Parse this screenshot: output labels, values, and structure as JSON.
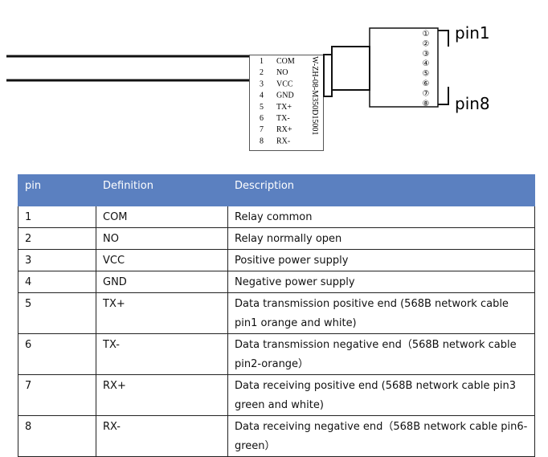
{
  "diagram": {
    "pins": [
      {
        "num": "1",
        "name": "COM"
      },
      {
        "num": "2",
        "name": "NO"
      },
      {
        "num": "3",
        "name": "VCC"
      },
      {
        "num": "4",
        "name": "GND"
      },
      {
        "num": "5",
        "name": "TX+"
      },
      {
        "num": "6",
        "name": "TX-"
      },
      {
        "num": "7",
        "name": "RX+"
      },
      {
        "num": "8",
        "name": "RX-"
      }
    ],
    "part_number": "W-ZH-08-M350D15001",
    "terminals": [
      "①",
      "②",
      "③",
      "④",
      "⑤",
      "⑥",
      "⑦",
      "⑧"
    ],
    "top_label": "pin1",
    "bottom_label": "pin8"
  },
  "table": {
    "header": [
      "pin",
      "Definition",
      "Description"
    ],
    "rows": [
      [
        "1",
        "COM",
        "Relay common"
      ],
      [
        "2",
        "NO",
        "Relay normally open"
      ],
      [
        "3",
        "VCC",
        "Positive power supply"
      ],
      [
        "4",
        "GND",
        "Negative power supply"
      ],
      [
        "5",
        "TX+",
        "Data transmission positive end (568B network cable pin1 orange and white)"
      ],
      [
        "6",
        "TX-",
        "Data transmission negative end（568B network cable pin2-orange）"
      ],
      [
        "7",
        "RX+",
        "Data receiving positive end (568B network cable pin3 green and white)"
      ],
      [
        "8",
        "RX-",
        "Data receiving negative end（568B network cable pin6-green）"
      ]
    ]
  }
}
